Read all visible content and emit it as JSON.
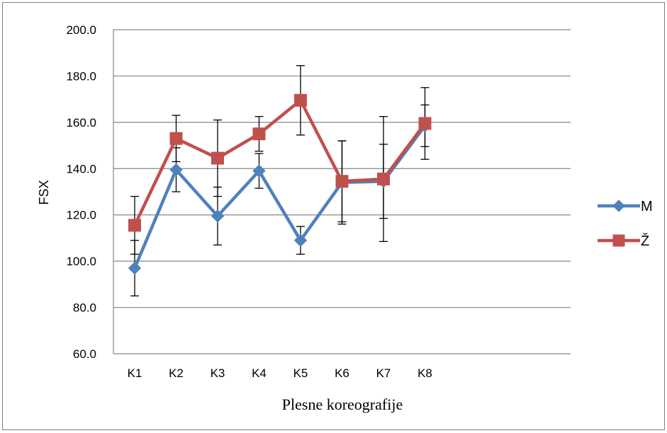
{
  "chart_data": {
    "type": "line",
    "xlabel": "Plesne koreografije",
    "ylabel": "FSX",
    "ylim": [
      60,
      200
    ],
    "yticks": [
      "60.0",
      "80.0",
      "100.0",
      "120.0",
      "140.0",
      "160.0",
      "180.0",
      "200.0"
    ],
    "categories": [
      "K1",
      "K2",
      "K3",
      "K4",
      "K5",
      "K6",
      "K7",
      "K8"
    ],
    "grid": true,
    "legend_position": "right",
    "series": [
      {
        "name": "M",
        "color": "#4F81BD",
        "marker": "diamond",
        "values": [
          97.0,
          139.5,
          119.5,
          139.0,
          109.0,
          134.0,
          134.5,
          158.5
        ],
        "error": [
          12.0,
          9.5,
          12.5,
          7.5,
          6.0,
          18.0,
          16.0,
          9.0
        ]
      },
      {
        "name": "Ž",
        "color": "#C0504D",
        "marker": "square",
        "values": [
          115.5,
          153.0,
          144.5,
          155.0,
          169.5,
          134.5,
          135.5,
          159.5
        ],
        "error": [
          12.5,
          10.0,
          16.5,
          7.5,
          15.0,
          17.5,
          27.0,
          15.5
        ]
      }
    ]
  }
}
